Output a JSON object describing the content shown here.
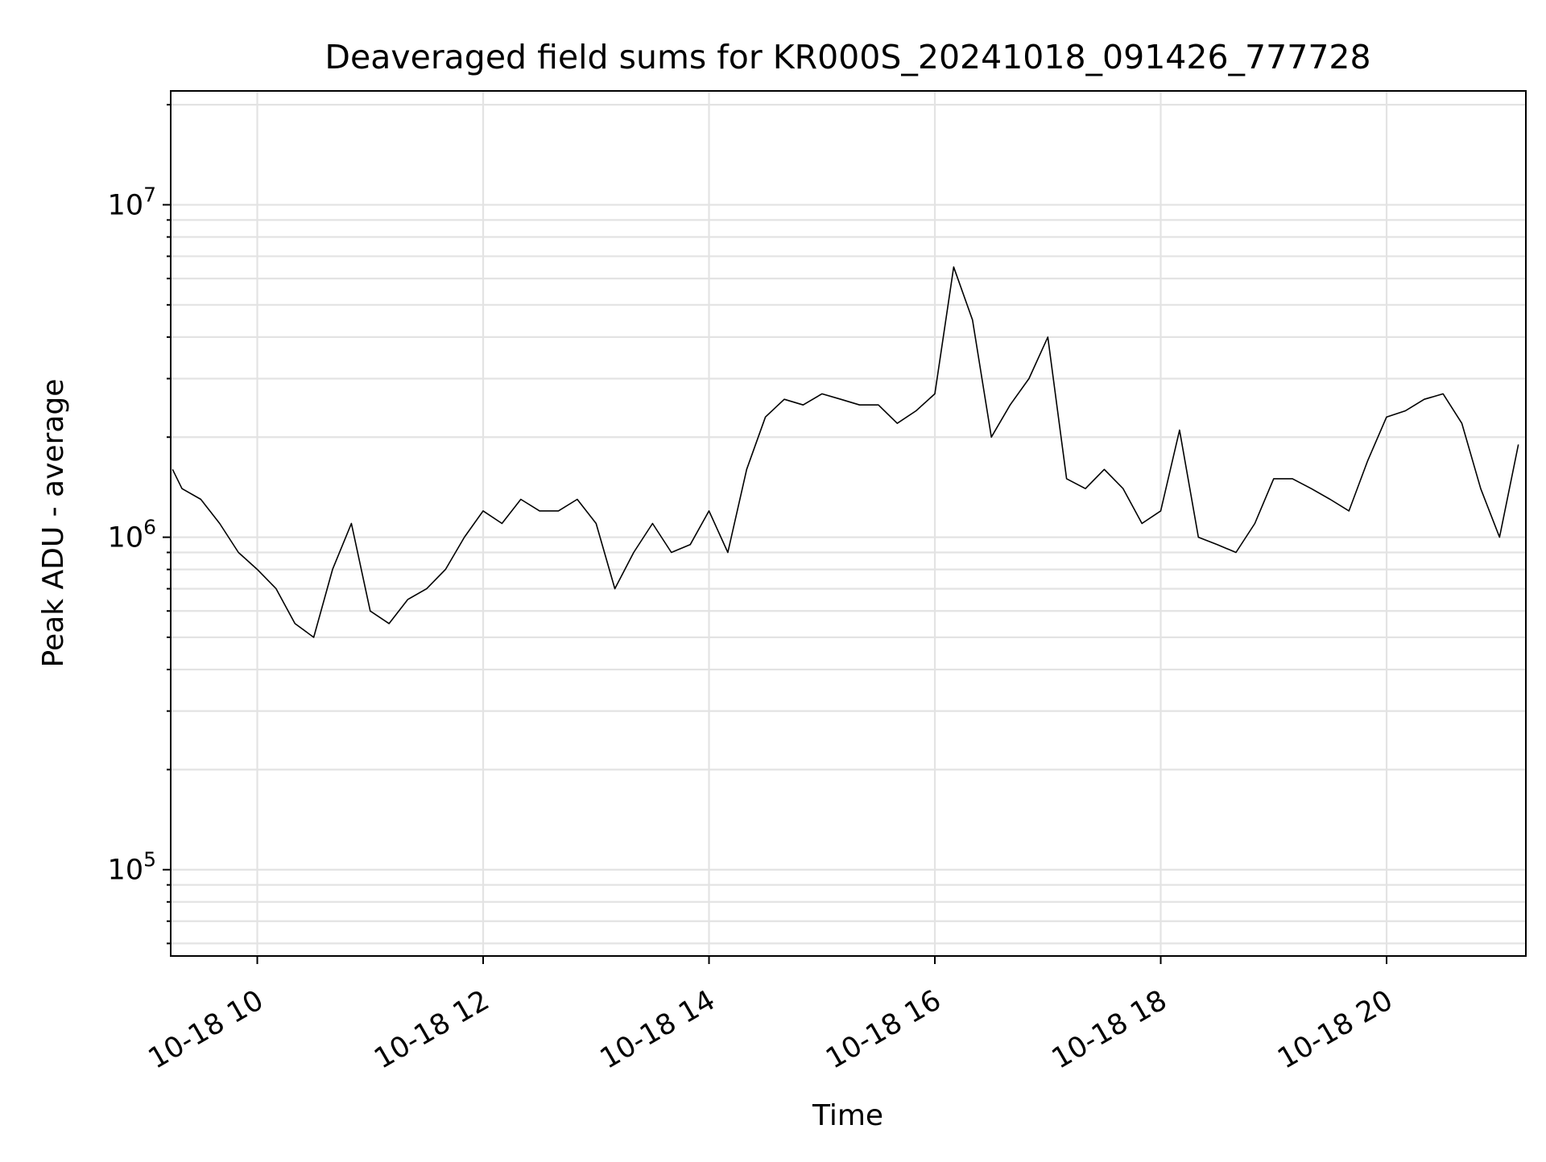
{
  "chart_data": {
    "type": "line",
    "title": "Deaveraged field sums for KR000S_20241018_091426_777728",
    "xlabel": "Time",
    "ylabel": "Peak ADU - average",
    "yscale": "log",
    "xlim": [
      "2024-10-18 09:14",
      "2024-10-18 21:14"
    ],
    "ylim": [
      55000,
      22000000
    ],
    "grid": true,
    "line_color": "#000000",
    "x_ticks": [
      {
        "value": "2024-10-18 10:00",
        "label": "10-18 10"
      },
      {
        "value": "2024-10-18 12:00",
        "label": "10-18 12"
      },
      {
        "value": "2024-10-18 14:00",
        "label": "10-18 14"
      },
      {
        "value": "2024-10-18 16:00",
        "label": "10-18 16"
      },
      {
        "value": "2024-10-18 18:00",
        "label": "10-18 18"
      },
      {
        "value": "2024-10-18 20:00",
        "label": "10-18 20"
      }
    ],
    "y_ticks": [
      {
        "value": 100000,
        "base": "10",
        "exp": "5"
      },
      {
        "value": 1000000,
        "base": "10",
        "exp": "6"
      },
      {
        "value": 10000000,
        "base": "10",
        "exp": "7"
      }
    ],
    "series": [
      {
        "name": "",
        "x": [
          "2024-10-18 09:15",
          "2024-10-18 09:20",
          "2024-10-18 09:30",
          "2024-10-18 09:40",
          "2024-10-18 09:50",
          "2024-10-18 10:00",
          "2024-10-18 10:10",
          "2024-10-18 10:20",
          "2024-10-18 10:30",
          "2024-10-18 10:40",
          "2024-10-18 10:50",
          "2024-10-18 11:00",
          "2024-10-18 11:10",
          "2024-10-18 11:20",
          "2024-10-18 11:30",
          "2024-10-18 11:40",
          "2024-10-18 11:50",
          "2024-10-18 12:00",
          "2024-10-18 12:10",
          "2024-10-18 12:20",
          "2024-10-18 12:30",
          "2024-10-18 12:40",
          "2024-10-18 12:50",
          "2024-10-18 13:00",
          "2024-10-18 13:10",
          "2024-10-18 13:20",
          "2024-10-18 13:30",
          "2024-10-18 13:40",
          "2024-10-18 13:50",
          "2024-10-18 14:00",
          "2024-10-18 14:10",
          "2024-10-18 14:20",
          "2024-10-18 14:30",
          "2024-10-18 14:40",
          "2024-10-18 14:50",
          "2024-10-18 15:00",
          "2024-10-18 15:10",
          "2024-10-18 15:20",
          "2024-10-18 15:30",
          "2024-10-18 15:40",
          "2024-10-18 15:50",
          "2024-10-18 16:00",
          "2024-10-18 16:10",
          "2024-10-18 16:20",
          "2024-10-18 16:30",
          "2024-10-18 16:40",
          "2024-10-18 16:50",
          "2024-10-18 17:00",
          "2024-10-18 17:10",
          "2024-10-18 17:20",
          "2024-10-18 17:30",
          "2024-10-18 17:40",
          "2024-10-18 17:50",
          "2024-10-18 18:00",
          "2024-10-18 18:10",
          "2024-10-18 18:20",
          "2024-10-18 18:30",
          "2024-10-18 18:40",
          "2024-10-18 18:50",
          "2024-10-18 19:00",
          "2024-10-18 19:10",
          "2024-10-18 19:20",
          "2024-10-18 19:30",
          "2024-10-18 19:40",
          "2024-10-18 19:50",
          "2024-10-18 20:00",
          "2024-10-18 20:10",
          "2024-10-18 20:20",
          "2024-10-18 20:30",
          "2024-10-18 20:40",
          "2024-10-18 20:50",
          "2024-10-18 21:00",
          "2024-10-18 21:10"
        ],
        "y": [
          1600000,
          1400000,
          1300000,
          1100000,
          900000,
          800000,
          700000,
          550000,
          500000,
          800000,
          1100000,
          600000,
          550000,
          650000,
          700000,
          800000,
          1000000,
          1200000,
          1100000,
          1300000,
          1200000,
          1200000,
          1300000,
          1100000,
          700000,
          900000,
          1100000,
          900000,
          950000,
          1200000,
          900000,
          1600000,
          2300000,
          2600000,
          2500000,
          2700000,
          2600000,
          2500000,
          2500000,
          2200000,
          2400000,
          2700000,
          6500000,
          4500000,
          2000000,
          2500000,
          3000000,
          4000000,
          1500000,
          1400000,
          1600000,
          1400000,
          1100000,
          1200000,
          2100000,
          1000000,
          950000,
          900000,
          1100000,
          1500000,
          1500000,
          1400000,
          1300000,
          1200000,
          1700000,
          2300000,
          2400000,
          2600000,
          2700000,
          2200000,
          1400000,
          1000000,
          1900000
        ]
      }
    ]
  }
}
